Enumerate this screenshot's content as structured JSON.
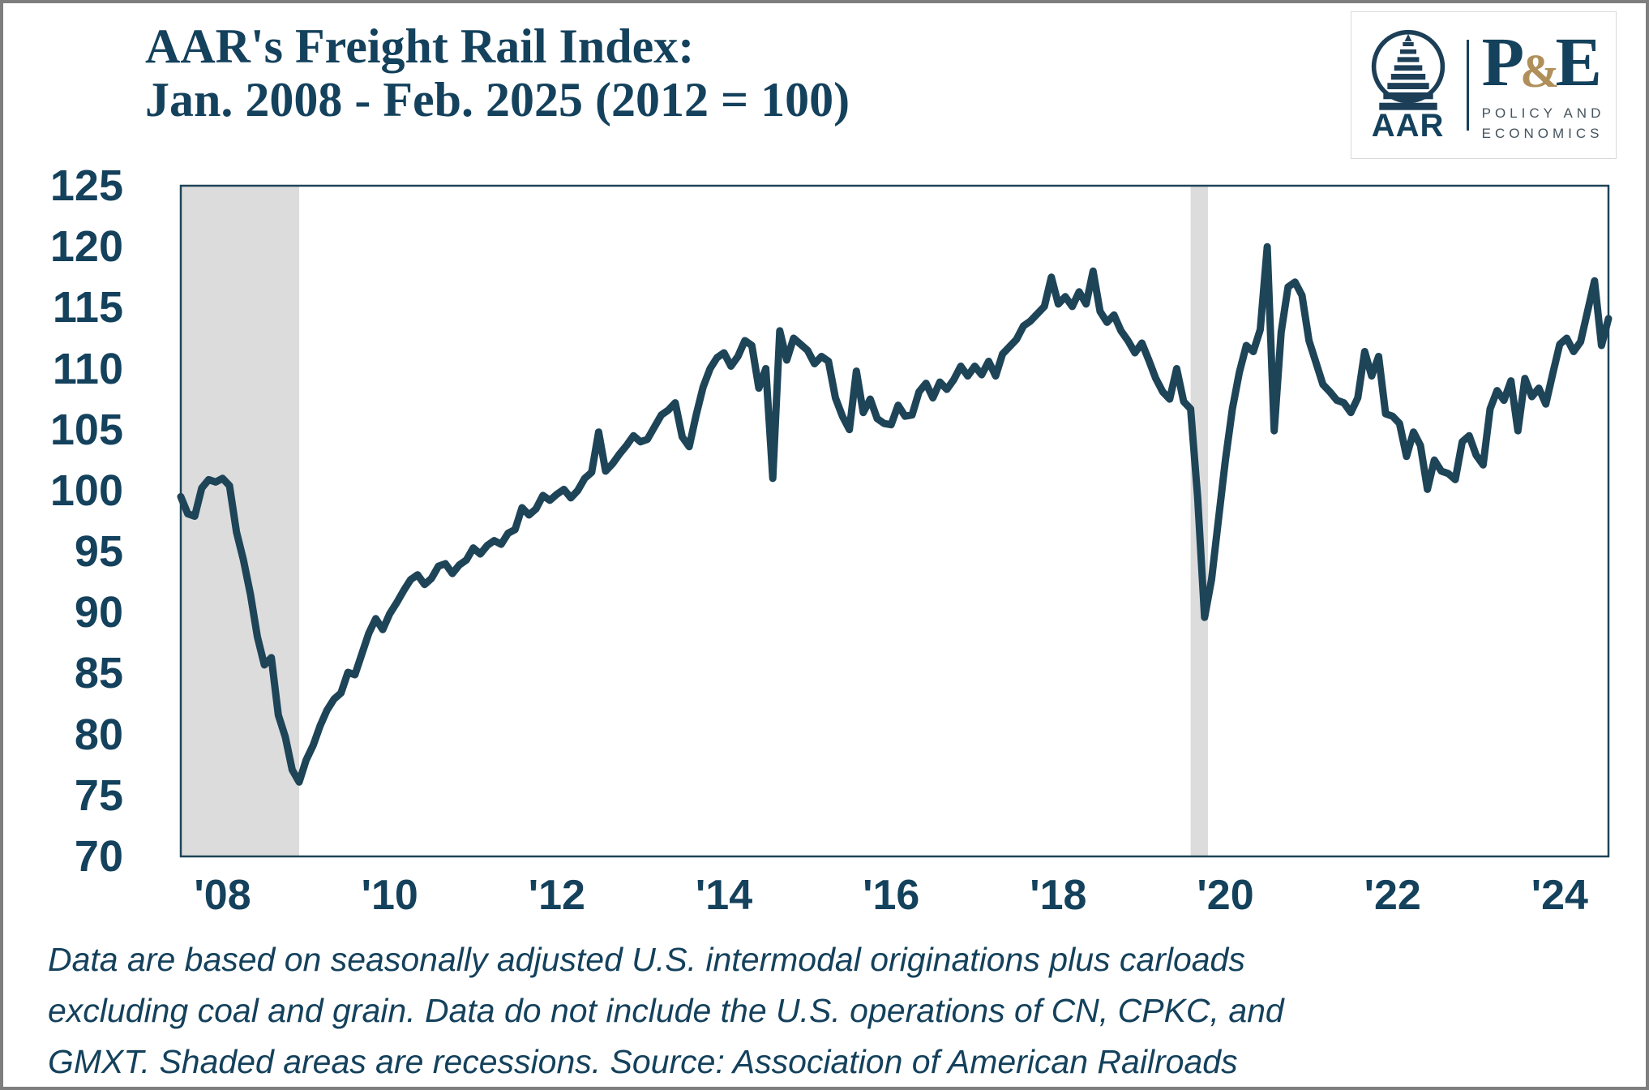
{
  "header": {
    "title_line1": "AAR's Freight Rail Index:",
    "title_line2": "Jan. 2008 - Feb. 2025 (2012 = 100)"
  },
  "logo": {
    "aar_label": "AAR",
    "pe_p": "P",
    "pe_amp": "&",
    "pe_e": "E",
    "pe_sub_line1": "POLICY AND",
    "pe_sub_line2": "ECONOMICS"
  },
  "footnote": {
    "line1": "Data are based on seasonally adjusted U.S. intermodal originations plus carloads",
    "line2": "excluding coal and grain. Data do not include the U.S. operations of CN, CPKC, and",
    "line3": "GMXT. Shaded areas are recessions. Source: Association of American Railroads"
  },
  "colors": {
    "text": "#14415c",
    "line": "#1e4458",
    "plot_border": "#1e4458",
    "recession": "#dcdcdc",
    "gold": "#b0905a",
    "page_border": "#7e7e7e"
  },
  "chart_data": {
    "type": "line",
    "title": "AAR's Freight Rail Index: Jan. 2008 - Feb. 2025 (2012 = 100)",
    "xlabel": "",
    "ylabel": "",
    "x_start": "2008-01",
    "x_end": "2025-02",
    "x_unit": "month",
    "ylim": [
      70,
      125
    ],
    "grid": false,
    "legend": false,
    "y_ticks": [
      125,
      120,
      115,
      110,
      105,
      100,
      95,
      90,
      85,
      80,
      75,
      70
    ],
    "x_tick_months": [
      6,
      30,
      54,
      78,
      102,
      126,
      150,
      174,
      198
    ],
    "x_tick_labels": [
      "'08",
      "'10",
      "'12",
      "'14",
      "'16",
      "'18",
      "'20",
      "'22",
      "'24"
    ],
    "recession_bands_months": [
      [
        0,
        17
      ],
      [
        145,
        147.5
      ]
    ],
    "series": [
      {
        "name": "AAR Freight Rail Index (2012 = 100)",
        "monthly_values": [
          99.5,
          98.1,
          97.9,
          100.2,
          100.9,
          100.7,
          101.0,
          100.4,
          96.6,
          94.3,
          91.5,
          88.0,
          85.7,
          86.3,
          81.6,
          79.8,
          77.1,
          76.1,
          77.9,
          79.1,
          80.7,
          82.0,
          82.9,
          83.4,
          85.1,
          84.9,
          86.6,
          88.3,
          89.5,
          88.6,
          89.9,
          90.8,
          91.8,
          92.7,
          93.1,
          92.3,
          92.8,
          93.8,
          94.0,
          93.2,
          93.9,
          94.3,
          95.3,
          94.8,
          95.5,
          95.9,
          95.6,
          96.5,
          96.8,
          98.6,
          98.0,
          98.5,
          99.6,
          99.2,
          99.7,
          100.1,
          99.4,
          100.0,
          101.0,
          101.5,
          104.8,
          101.6,
          102.2,
          103.0,
          103.7,
          104.5,
          104.0,
          104.2,
          105.2,
          106.2,
          106.6,
          107.2,
          104.4,
          103.6,
          106.2,
          108.5,
          110.0,
          110.9,
          111.3,
          110.2,
          111.0,
          112.3,
          111.9,
          108.4,
          110.0,
          101.0,
          113.1,
          110.7,
          112.5,
          112.0,
          111.5,
          110.4,
          111.0,
          110.6,
          107.6,
          106.1,
          105.0,
          109.8,
          106.4,
          107.5,
          105.9,
          105.5,
          105.4,
          107.0,
          106.1,
          106.2,
          108.1,
          108.8,
          107.6,
          108.9,
          108.3,
          109.1,
          110.2,
          109.4,
          110.2,
          109.5,
          110.6,
          109.4,
          111.2,
          111.8,
          112.4,
          113.5,
          113.9,
          114.5,
          115.1,
          117.5,
          115.3,
          115.9,
          115.1,
          116.3,
          115.3,
          118.0,
          114.7,
          113.8,
          114.4,
          113.1,
          112.3,
          111.3,
          112.1,
          110.7,
          109.2,
          108.1,
          107.5,
          110.0,
          107.3,
          106.7,
          99.5,
          89.6,
          92.7,
          97.6,
          102.5,
          106.7,
          109.7,
          111.9,
          111.4,
          113.2,
          120.0,
          104.9,
          113.0,
          116.7,
          117.1,
          116.0,
          112.3,
          110.5,
          108.7,
          108.1,
          107.4,
          107.2,
          106.4,
          107.6,
          111.4,
          109.4,
          111.0,
          106.3,
          106.1,
          105.5,
          102.8,
          104.8,
          103.7,
          100.1,
          102.5,
          101.6,
          101.4,
          100.9,
          104.0,
          104.5,
          102.9,
          102.1,
          106.7,
          108.2,
          107.4,
          109.0,
          104.9,
          109.2,
          107.7,
          108.4,
          107.1,
          109.6,
          112.0,
          112.5,
          111.4,
          112.2,
          114.7,
          117.2,
          111.9,
          114.1
        ]
      }
    ]
  }
}
